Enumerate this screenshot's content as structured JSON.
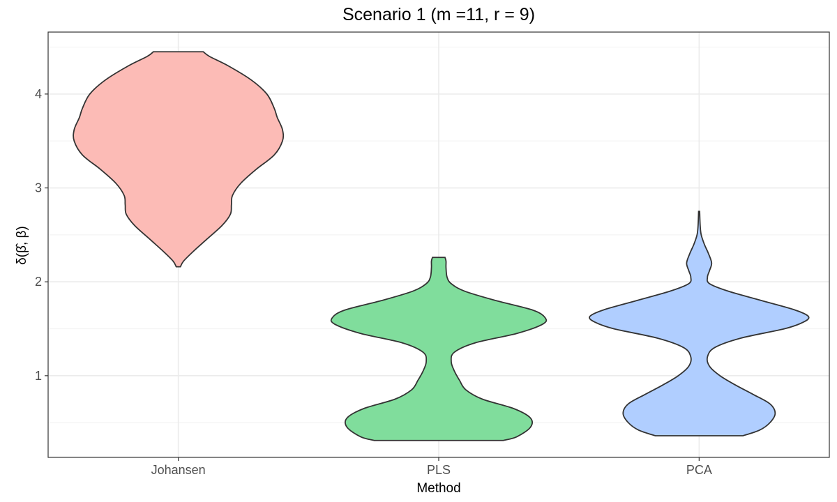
{
  "chart_data": {
    "type": "violin",
    "title": "Scenario 1 (m =11, r = 9)",
    "xlabel": "Method",
    "ylabel": "δ(β̂, β)",
    "categories": [
      "Johansen",
      "PLS",
      "PCA"
    ],
    "ylim": [
      0.13,
      4.66
    ],
    "y_ticks": [
      1,
      2,
      3,
      4
    ],
    "y_tick_labels": [
      "1",
      "2",
      "3",
      "4"
    ],
    "grid": true,
    "legend": "none",
    "series": [
      {
        "category": "Johansen",
        "color": "#f8766d",
        "min": 2.16,
        "max": 4.45,
        "density": [
          [
            2.16,
            0.02
          ],
          [
            2.22,
            0.05
          ],
          [
            2.32,
            0.14
          ],
          [
            2.45,
            0.27
          ],
          [
            2.6,
            0.42
          ],
          [
            2.72,
            0.5
          ],
          [
            2.82,
            0.51
          ],
          [
            2.92,
            0.52
          ],
          [
            3.05,
            0.6
          ],
          [
            3.2,
            0.75
          ],
          [
            3.35,
            0.92
          ],
          [
            3.5,
            1.0
          ],
          [
            3.62,
            1.0
          ],
          [
            3.75,
            0.95
          ],
          [
            3.85,
            0.92
          ],
          [
            4.0,
            0.85
          ],
          [
            4.15,
            0.7
          ],
          [
            4.3,
            0.48
          ],
          [
            4.4,
            0.3
          ],
          [
            4.45,
            0.24
          ]
        ]
      },
      {
        "category": "PLS",
        "color": "#00ba38",
        "min": 0.31,
        "max": 2.26,
        "density": [
          [
            0.31,
            0.62
          ],
          [
            0.35,
            0.75
          ],
          [
            0.45,
            0.88
          ],
          [
            0.55,
            0.88
          ],
          [
            0.65,
            0.72
          ],
          [
            0.75,
            0.42
          ],
          [
            0.85,
            0.26
          ],
          [
            0.95,
            0.2
          ],
          [
            1.05,
            0.15
          ],
          [
            1.15,
            0.12
          ],
          [
            1.25,
            0.15
          ],
          [
            1.35,
            0.35
          ],
          [
            1.45,
            0.75
          ],
          [
            1.55,
            1.0
          ],
          [
            1.62,
            1.02
          ],
          [
            1.7,
            0.9
          ],
          [
            1.8,
            0.55
          ],
          [
            1.9,
            0.25
          ],
          [
            1.98,
            0.12
          ],
          [
            2.05,
            0.08
          ],
          [
            2.15,
            0.07
          ],
          [
            2.22,
            0.07
          ],
          [
            2.26,
            0.06
          ]
        ]
      },
      {
        "category": "PCA",
        "color": "#619cff",
        "min": 0.36,
        "max": 2.75,
        "density": [
          [
            0.36,
            0.42
          ],
          [
            0.42,
            0.58
          ],
          [
            0.5,
            0.68
          ],
          [
            0.6,
            0.73
          ],
          [
            0.7,
            0.68
          ],
          [
            0.8,
            0.52
          ],
          [
            0.9,
            0.35
          ],
          [
            1.0,
            0.2
          ],
          [
            1.1,
            0.1
          ],
          [
            1.2,
            0.08
          ],
          [
            1.3,
            0.15
          ],
          [
            1.4,
            0.4
          ],
          [
            1.5,
            0.82
          ],
          [
            1.57,
            1.0
          ],
          [
            1.63,
            1.05
          ],
          [
            1.7,
            0.92
          ],
          [
            1.8,
            0.6
          ],
          [
            1.9,
            0.28
          ],
          [
            1.98,
            0.1
          ],
          [
            2.05,
            0.08
          ],
          [
            2.12,
            0.1
          ],
          [
            2.2,
            0.12
          ],
          [
            2.3,
            0.09
          ],
          [
            2.4,
            0.05
          ],
          [
            2.5,
            0.02
          ],
          [
            2.6,
            0.01
          ],
          [
            2.75,
            0.005
          ]
        ]
      }
    ]
  }
}
